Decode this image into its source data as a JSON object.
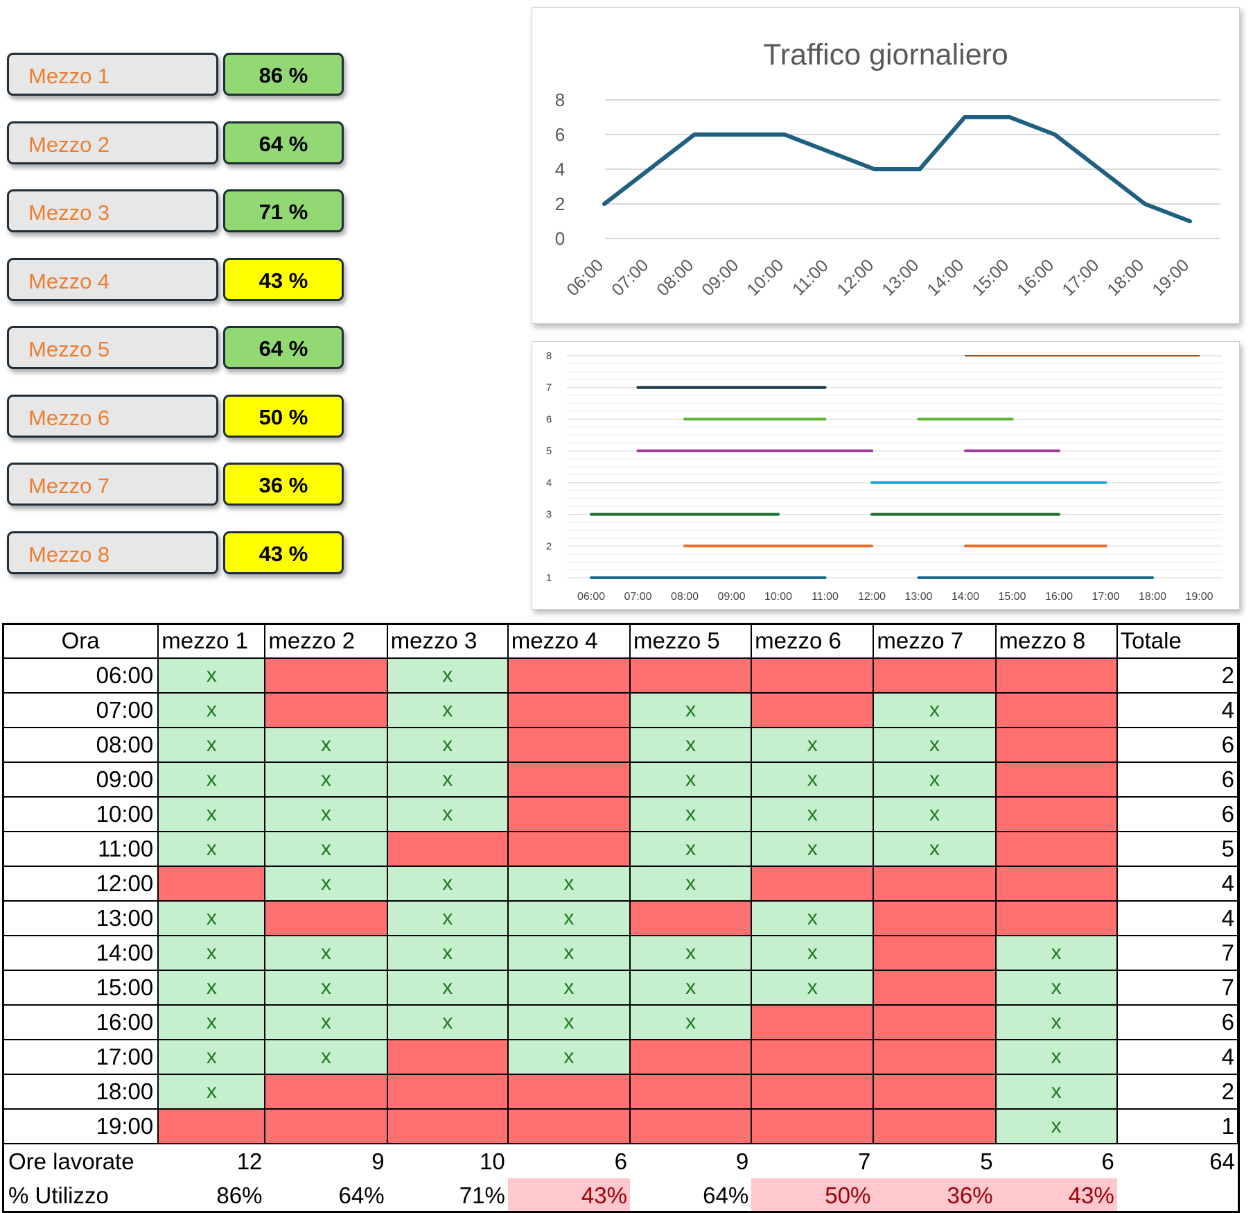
{
  "utilization_cards": [
    {
      "name": "Mezzo 1",
      "percent": "86 %",
      "status": "green"
    },
    {
      "name": "Mezzo 2",
      "percent": "64 %",
      "status": "green"
    },
    {
      "name": "Mezzo 3",
      "percent": "71 %",
      "status": "green"
    },
    {
      "name": "Mezzo 4",
      "percent": "43 %",
      "status": "yellow"
    },
    {
      "name": "Mezzo 5",
      "percent": "64 %",
      "status": "green"
    },
    {
      "name": "Mezzo 6",
      "percent": "50 %",
      "status": "yellow"
    },
    {
      "name": "Mezzo 7",
      "percent": "36 %",
      "status": "yellow"
    },
    {
      "name": "Mezzo 8",
      "percent": "43 %",
      "status": "yellow"
    }
  ],
  "colors": {
    "green": "#92d873",
    "yellow": "#ffff00",
    "card_text": "#ed7d31",
    "cell_on": "#c6efce",
    "cell_off": "#ff7070",
    "low_bg": "#ffc7ce",
    "low_text": "#9c0006"
  },
  "chart_data": [
    {
      "type": "line",
      "title": "Traffico giornaliero",
      "categories": [
        "06:00",
        "07:00",
        "08:00",
        "09:00",
        "10:00",
        "11:00",
        "12:00",
        "13:00",
        "14:00",
        "15:00",
        "16:00",
        "17:00",
        "18:00",
        "19:00"
      ],
      "series": [
        {
          "values": [
            2,
            4,
            6,
            6,
            6,
            5,
            4,
            4,
            7,
            7,
            6,
            4,
            2,
            1
          ],
          "color": "#1f5f80"
        }
      ],
      "ylim": [
        0,
        8
      ],
      "yticks": [
        0,
        2,
        4,
        6,
        8
      ],
      "grid": true
    },
    {
      "type": "line",
      "categories": [
        "06:00",
        "07:00",
        "08:00",
        "09:00",
        "10:00",
        "11:00",
        "12:00",
        "13:00",
        "14:00",
        "15:00",
        "16:00",
        "17:00",
        "18:00",
        "19:00"
      ],
      "yticks": [
        1,
        2,
        3,
        4,
        5,
        6,
        7,
        8
      ],
      "ylim": [
        1,
        8
      ],
      "series": [
        {
          "level": 1,
          "color": "#1f6b8c",
          "values": [
            1,
            1,
            1,
            1,
            1,
            1,
            null,
            1,
            1,
            1,
            1,
            1,
            1,
            null
          ]
        },
        {
          "level": 2,
          "color": "#e8702a",
          "values": [
            null,
            null,
            2,
            2,
            2,
            2,
            2,
            null,
            2,
            2,
            2,
            2,
            null,
            null
          ]
        },
        {
          "level": 3,
          "color": "#1e6b2e",
          "values": [
            3,
            3,
            3,
            3,
            3,
            null,
            3,
            3,
            3,
            3,
            3,
            null,
            null,
            null
          ]
        },
        {
          "level": 4,
          "color": "#27a3dd",
          "values": [
            null,
            null,
            null,
            null,
            null,
            null,
            4,
            4,
            4,
            4,
            4,
            4,
            null,
            null
          ]
        },
        {
          "level": 5,
          "color": "#a23c9c",
          "values": [
            null,
            5,
            5,
            5,
            5,
            5,
            5,
            null,
            5,
            5,
            5,
            null,
            null,
            null
          ]
        },
        {
          "level": 6,
          "color": "#5cb530",
          "values": [
            null,
            null,
            6,
            6,
            6,
            6,
            null,
            6,
            6,
            6,
            null,
            null,
            null,
            null
          ]
        },
        {
          "level": 7,
          "color": "#1b3a4b",
          "values": [
            null,
            7,
            7,
            7,
            7,
            7,
            null,
            null,
            null,
            null,
            null,
            null,
            null,
            null
          ]
        },
        {
          "level": 8,
          "color": "#9c4a1a",
          "values": [
            null,
            null,
            null,
            null,
            null,
            null,
            null,
            null,
            8,
            8,
            8,
            8,
            8,
            8
          ]
        }
      ],
      "grid": true
    }
  ],
  "table": {
    "headers": [
      "Ora",
      "mezzo 1",
      "mezzo 2",
      "mezzo 3",
      "mezzo 4",
      "mezzo 5",
      "mezzo 6",
      "mezzo 7",
      "mezzo 8",
      "Totale"
    ],
    "mark": "x",
    "rows": [
      {
        "time": "06:00",
        "cells": [
          1,
          0,
          1,
          0,
          0,
          0,
          0,
          0
        ],
        "total": "2"
      },
      {
        "time": "07:00",
        "cells": [
          1,
          0,
          1,
          0,
          1,
          0,
          1,
          0
        ],
        "total": "4"
      },
      {
        "time": "08:00",
        "cells": [
          1,
          1,
          1,
          0,
          1,
          1,
          1,
          0
        ],
        "total": "6"
      },
      {
        "time": "09:00",
        "cells": [
          1,
          1,
          1,
          0,
          1,
          1,
          1,
          0
        ],
        "total": "6"
      },
      {
        "time": "10:00",
        "cells": [
          1,
          1,
          1,
          0,
          1,
          1,
          1,
          0
        ],
        "total": "6"
      },
      {
        "time": "11:00",
        "cells": [
          1,
          1,
          0,
          0,
          1,
          1,
          1,
          0
        ],
        "total": "5"
      },
      {
        "time": "12:00",
        "cells": [
          0,
          1,
          1,
          1,
          1,
          0,
          0,
          0
        ],
        "total": "4"
      },
      {
        "time": "13:00",
        "cells": [
          1,
          0,
          1,
          1,
          0,
          1,
          0,
          0
        ],
        "total": "4"
      },
      {
        "time": "14:00",
        "cells": [
          1,
          1,
          1,
          1,
          1,
          1,
          0,
          1
        ],
        "total": "7"
      },
      {
        "time": "15:00",
        "cells": [
          1,
          1,
          1,
          1,
          1,
          1,
          0,
          1
        ],
        "total": "7"
      },
      {
        "time": "16:00",
        "cells": [
          1,
          1,
          1,
          1,
          1,
          0,
          0,
          1
        ],
        "total": "6"
      },
      {
        "time": "17:00",
        "cells": [
          1,
          1,
          0,
          1,
          0,
          0,
          0,
          1
        ],
        "total": "4"
      },
      {
        "time": "18:00",
        "cells": [
          1,
          0,
          0,
          0,
          0,
          0,
          0,
          1
        ],
        "total": "2"
      },
      {
        "time": "19:00",
        "cells": [
          0,
          0,
          0,
          0,
          0,
          0,
          0,
          1
        ],
        "total": "1"
      }
    ],
    "hours_label": "Ore lavorate",
    "hours": [
      "12",
      "9",
      "10",
      "6",
      "9",
      "7",
      "5",
      "6",
      "64"
    ],
    "util_label": "% Utilizzo",
    "util": [
      "86%",
      "64%",
      "71%",
      "43%",
      "64%",
      "50%",
      "36%",
      "43%"
    ],
    "util_low": [
      false,
      false,
      false,
      true,
      false,
      true,
      true,
      true
    ]
  }
}
